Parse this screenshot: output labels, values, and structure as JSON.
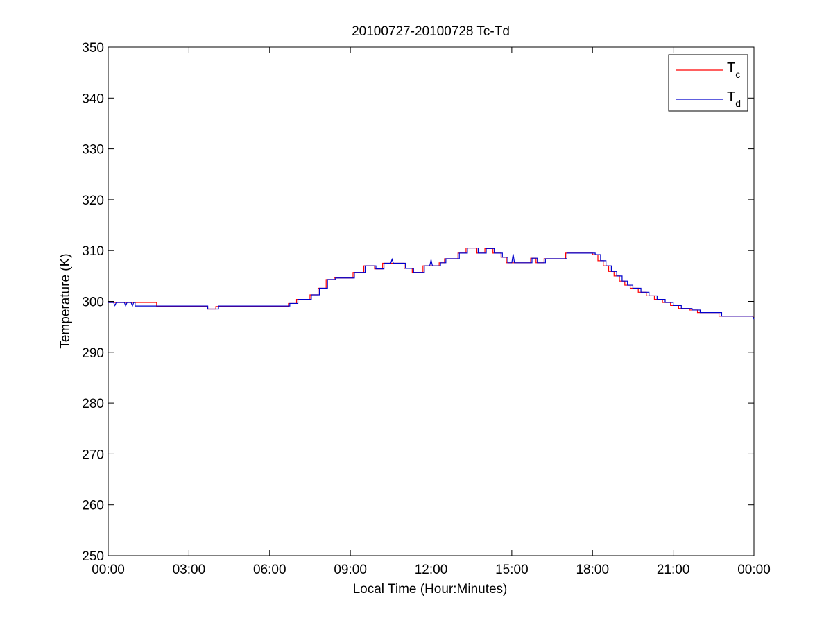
{
  "chart_data": {
    "type": "line",
    "title": "20100727-20100728 Tc-Td",
    "xlabel": "Local Time (Hour:Minutes)",
    "ylabel": "Temperature (K)",
    "xlim": [
      0,
      24
    ],
    "ylim": [
      250,
      350
    ],
    "xticks": [
      0,
      3,
      6,
      9,
      12,
      15,
      18,
      21,
      24
    ],
    "xtick_labels": [
      "00:00",
      "03:00",
      "06:00",
      "09:00",
      "12:00",
      "15:00",
      "18:00",
      "21:00",
      "00:00"
    ],
    "yticks": [
      250,
      260,
      270,
      280,
      290,
      300,
      310,
      320,
      330,
      340,
      350
    ],
    "ytick_labels": [
      "250",
      "260",
      "270",
      "280",
      "290",
      "300",
      "310",
      "320",
      "330",
      "340",
      "350"
    ],
    "grid": false,
    "legend": {
      "position": "top-right",
      "entries": [
        {
          "main": "T",
          "sub": "c",
          "series": 0
        },
        {
          "main": "T",
          "sub": "d",
          "series": 1
        }
      ]
    },
    "series": [
      {
        "name": "Tc",
        "color": "#ff0000",
        "points": [
          [
            0,
            299.8
          ],
          [
            1.8,
            299.8
          ],
          [
            1.8,
            299.0
          ],
          [
            3.7,
            299.0
          ],
          [
            3.7,
            298.5
          ],
          [
            4.0,
            298.5
          ],
          [
            4.0,
            299.0
          ],
          [
            6.7,
            299.0
          ],
          [
            6.7,
            299.6
          ],
          [
            7.0,
            299.6
          ],
          [
            7.0,
            300.4
          ],
          [
            7.5,
            300.4
          ],
          [
            7.5,
            301.3
          ],
          [
            7.8,
            301.3
          ],
          [
            7.8,
            302.6
          ],
          [
            8.1,
            302.6
          ],
          [
            8.1,
            304.3
          ],
          [
            8.4,
            304.3
          ],
          [
            8.4,
            304.6
          ],
          [
            9.1,
            304.6
          ],
          [
            9.1,
            305.7
          ],
          [
            9.5,
            305.7
          ],
          [
            9.5,
            307.0
          ],
          [
            9.9,
            307.0
          ],
          [
            9.9,
            306.4
          ],
          [
            10.2,
            306.4
          ],
          [
            10.2,
            307.5
          ],
          [
            11.0,
            307.5
          ],
          [
            11.0,
            306.5
          ],
          [
            11.3,
            306.5
          ],
          [
            11.3,
            305.7
          ],
          [
            11.7,
            305.7
          ],
          [
            11.7,
            307.0
          ],
          [
            12.3,
            307.0
          ],
          [
            12.3,
            307.6
          ],
          [
            12.5,
            307.6
          ],
          [
            12.5,
            308.4
          ],
          [
            13.0,
            308.4
          ],
          [
            13.0,
            309.5
          ],
          [
            13.3,
            309.5
          ],
          [
            13.3,
            310.5
          ],
          [
            13.7,
            310.5
          ],
          [
            13.7,
            309.5
          ],
          [
            14.0,
            309.5
          ],
          [
            14.0,
            310.4
          ],
          [
            14.3,
            310.4
          ],
          [
            14.3,
            309.5
          ],
          [
            14.6,
            309.5
          ],
          [
            14.6,
            308.7
          ],
          [
            14.8,
            308.7
          ],
          [
            14.8,
            307.6
          ],
          [
            15.7,
            307.6
          ],
          [
            15.7,
            308.5
          ],
          [
            15.9,
            308.5
          ],
          [
            15.9,
            307.6
          ],
          [
            16.2,
            307.6
          ],
          [
            16.2,
            308.4
          ],
          [
            17.0,
            308.4
          ],
          [
            17.0,
            309.5
          ],
          [
            18.0,
            309.5
          ],
          [
            18.0,
            309.2
          ],
          [
            18.2,
            309.2
          ],
          [
            18.2,
            308.0
          ],
          [
            18.4,
            308.0
          ],
          [
            18.4,
            307.0
          ],
          [
            18.6,
            307.0
          ],
          [
            18.6,
            305.9
          ],
          [
            18.8,
            305.9
          ],
          [
            18.8,
            305.0
          ],
          [
            19.0,
            305.0
          ],
          [
            19.0,
            304.0
          ],
          [
            19.2,
            304.0
          ],
          [
            19.2,
            303.2
          ],
          [
            19.4,
            303.2
          ],
          [
            19.4,
            302.6
          ],
          [
            19.7,
            302.6
          ],
          [
            19.7,
            301.8
          ],
          [
            20.0,
            301.8
          ],
          [
            20.0,
            301.1
          ],
          [
            20.3,
            301.1
          ],
          [
            20.3,
            300.4
          ],
          [
            20.6,
            300.4
          ],
          [
            20.6,
            299.8
          ],
          [
            20.9,
            299.8
          ],
          [
            20.9,
            299.2
          ],
          [
            21.2,
            299.2
          ],
          [
            21.2,
            298.6
          ],
          [
            21.6,
            298.6
          ],
          [
            21.6,
            298.3
          ],
          [
            21.9,
            298.3
          ],
          [
            21.9,
            297.8
          ],
          [
            22.7,
            297.8
          ],
          [
            22.7,
            297.1
          ],
          [
            24.0,
            297.1
          ]
        ]
      },
      {
        "name": "Td",
        "color": "#0000cc",
        "points": [
          [
            0,
            299.8
          ],
          [
            0.2,
            299.8
          ],
          [
            0.25,
            299.2
          ],
          [
            0.3,
            299.8
          ],
          [
            0.6,
            299.8
          ],
          [
            0.65,
            299.1
          ],
          [
            0.7,
            299.8
          ],
          [
            0.85,
            299.8
          ],
          [
            0.9,
            299.1
          ],
          [
            0.95,
            299.8
          ],
          [
            1.0,
            299.8
          ],
          [
            1.0,
            299.1
          ],
          [
            3.7,
            299.1
          ],
          [
            3.7,
            298.5
          ],
          [
            4.1,
            298.5
          ],
          [
            4.1,
            299.1
          ],
          [
            6.75,
            299.1
          ],
          [
            6.75,
            299.6
          ],
          [
            7.05,
            299.6
          ],
          [
            7.05,
            300.4
          ],
          [
            7.55,
            300.4
          ],
          [
            7.55,
            301.3
          ],
          [
            7.85,
            301.3
          ],
          [
            7.85,
            302.6
          ],
          [
            8.15,
            302.6
          ],
          [
            8.15,
            304.3
          ],
          [
            8.45,
            304.3
          ],
          [
            8.45,
            304.6
          ],
          [
            9.15,
            304.6
          ],
          [
            9.15,
            305.7
          ],
          [
            9.55,
            305.7
          ],
          [
            9.55,
            307.0
          ],
          [
            9.95,
            307.0
          ],
          [
            9.95,
            306.4
          ],
          [
            10.25,
            306.4
          ],
          [
            10.25,
            307.5
          ],
          [
            10.5,
            307.5
          ],
          [
            10.55,
            308.3
          ],
          [
            10.6,
            307.5
          ],
          [
            11.05,
            307.5
          ],
          [
            11.05,
            306.5
          ],
          [
            11.35,
            306.5
          ],
          [
            11.35,
            305.7
          ],
          [
            11.75,
            305.7
          ],
          [
            11.75,
            307.0
          ],
          [
            11.95,
            307.0
          ],
          [
            12.0,
            308.2
          ],
          [
            12.05,
            307.0
          ],
          [
            12.35,
            307.0
          ],
          [
            12.35,
            307.6
          ],
          [
            12.55,
            307.6
          ],
          [
            12.55,
            308.4
          ],
          [
            13.05,
            308.4
          ],
          [
            13.05,
            309.5
          ],
          [
            13.35,
            309.5
          ],
          [
            13.35,
            310.5
          ],
          [
            13.75,
            310.5
          ],
          [
            13.75,
            309.5
          ],
          [
            14.05,
            309.5
          ],
          [
            14.05,
            310.4
          ],
          [
            14.35,
            310.4
          ],
          [
            14.35,
            309.5
          ],
          [
            14.65,
            309.5
          ],
          [
            14.65,
            308.7
          ],
          [
            14.85,
            308.7
          ],
          [
            14.85,
            307.6
          ],
          [
            15.0,
            307.6
          ],
          [
            15.05,
            309.3
          ],
          [
            15.1,
            307.6
          ],
          [
            15.75,
            307.6
          ],
          [
            15.75,
            308.5
          ],
          [
            15.95,
            308.5
          ],
          [
            15.95,
            307.6
          ],
          [
            16.25,
            307.6
          ],
          [
            16.25,
            308.4
          ],
          [
            17.05,
            308.4
          ],
          [
            17.05,
            309.5
          ],
          [
            18.1,
            309.5
          ],
          [
            18.1,
            309.2
          ],
          [
            18.3,
            309.2
          ],
          [
            18.3,
            308.0
          ],
          [
            18.5,
            308.0
          ],
          [
            18.5,
            307.0
          ],
          [
            18.7,
            307.0
          ],
          [
            18.7,
            305.9
          ],
          [
            18.9,
            305.9
          ],
          [
            18.9,
            305.0
          ],
          [
            19.1,
            305.0
          ],
          [
            19.1,
            304.0
          ],
          [
            19.3,
            304.0
          ],
          [
            19.3,
            303.2
          ],
          [
            19.5,
            303.2
          ],
          [
            19.5,
            302.6
          ],
          [
            19.8,
            302.6
          ],
          [
            19.8,
            301.8
          ],
          [
            20.1,
            301.8
          ],
          [
            20.1,
            301.1
          ],
          [
            20.4,
            301.1
          ],
          [
            20.4,
            300.4
          ],
          [
            20.7,
            300.4
          ],
          [
            20.7,
            299.8
          ],
          [
            21.0,
            299.8
          ],
          [
            21.0,
            299.2
          ],
          [
            21.3,
            299.2
          ],
          [
            21.3,
            298.6
          ],
          [
            21.7,
            298.6
          ],
          [
            21.7,
            298.3
          ],
          [
            22.0,
            298.3
          ],
          [
            22.0,
            297.8
          ],
          [
            22.8,
            297.8
          ],
          [
            22.8,
            297.1
          ],
          [
            23.95,
            297.1
          ],
          [
            24.0,
            296.5
          ]
        ]
      }
    ]
  }
}
